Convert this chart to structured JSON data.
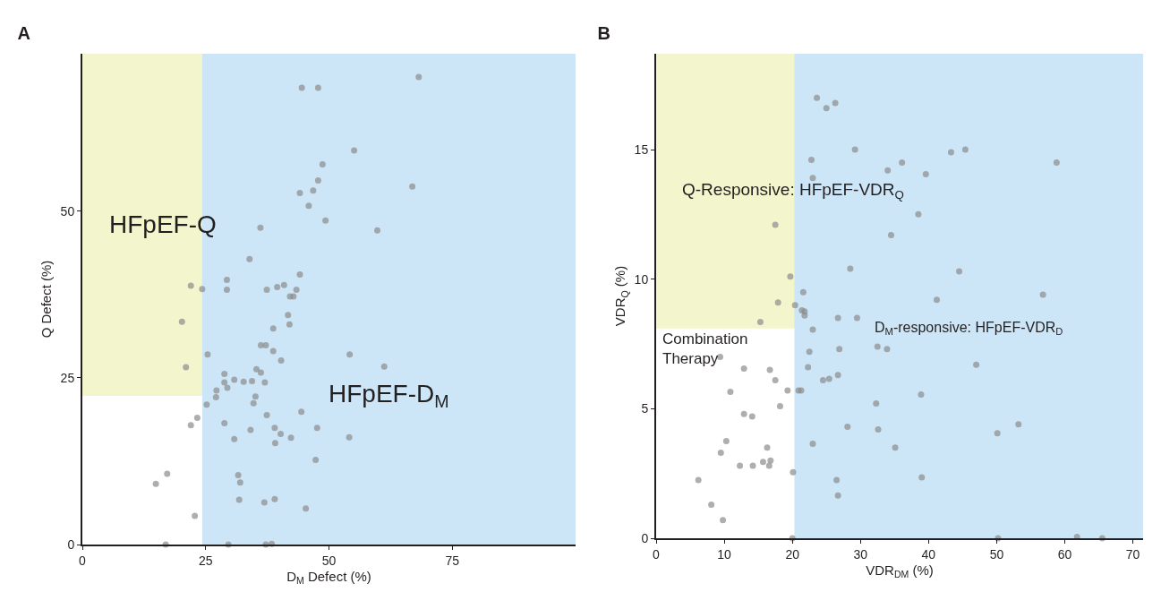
{
  "chart_data": [
    {
      "type": "scatter",
      "title": "A",
      "xlabel": "D$_{M}$ Defect (%)",
      "ylabel": "Q Defect (%)",
      "marker": "circle",
      "xlim": [
        0,
        100
      ],
      "xticks": [
        0,
        25,
        50,
        75
      ],
      "ylim": [
        0,
        73.6
      ],
      "yticks": [
        0,
        25,
        50
      ],
      "bands": [
        {
          "axis": "y",
          "from": 22.3,
          "to": 73.6,
          "label": "HFpEF-Q",
          "color": "#f3f6cc"
        },
        {
          "axis": "x",
          "from": 24.3,
          "to": 100,
          "label": "HFpEF-D$_{M}$",
          "color": "#cce6f7"
        }
      ],
      "series": [
        {
          "color": "#8c8c8c",
          "x": [
            44.5,
            44.1,
            36.1,
            33.9,
            44.1,
            22.0,
            24.3,
            29.3,
            29.3,
            37.4,
            39.5,
            40.9,
            43.4,
            42.1,
            42.8,
            41.7,
            42.0,
            20.2,
            38.7,
            36.2,
            37.2,
            38.7,
            40.3,
            25.4,
            21.0,
            35.3,
            36.2,
            28.8,
            28.8,
            30.8,
            32.7,
            34.4,
            37.0,
            29.4,
            27.2,
            27.1,
            35.1,
            25.2,
            34.7,
            44.4,
            37.4,
            23.3,
            22.0,
            28.8,
            39.0,
            40.2,
            42.3,
            34.1,
            30.8,
            39.1,
            17.2,
            14.9,
            31.6,
            32.0,
            31.8,
            36.9,
            39.0,
            22.8,
            16.9,
            29.6,
            37.2,
            38.4,
            47.8,
            68.2,
            55.1,
            48.7,
            47.8,
            46.8,
            45.9,
            49.3,
            66.9,
            59.8,
            54.2,
            61.2,
            47.6,
            54.1,
            47.3,
            45.3
          ],
          "values": [
            68.5,
            52.7,
            47.5,
            42.8,
            40.5,
            38.8,
            38.3,
            39.7,
            38.2,
            38.2,
            38.6,
            38.9,
            38.2,
            37.2,
            37.2,
            34.4,
            33.0,
            33.4,
            32.4,
            29.9,
            29.9,
            29.0,
            27.6,
            28.5,
            26.6,
            26.3,
            25.8,
            25.6,
            24.3,
            24.7,
            24.4,
            24.5,
            24.3,
            23.5,
            23.1,
            22.1,
            22.2,
            21.0,
            21.2,
            19.9,
            19.4,
            19.0,
            17.9,
            18.2,
            17.5,
            16.6,
            16.0,
            17.2,
            15.8,
            15.2,
            10.6,
            9.1,
            10.4,
            9.3,
            6.7,
            6.3,
            6.8,
            4.3,
            0,
            0,
            0,
            0.1,
            68.5,
            70.1,
            59.1,
            57.0,
            54.6,
            53.1,
            50.8,
            48.6,
            53.7,
            47.1,
            28.5,
            26.7,
            17.5,
            16.1,
            12.7,
            5.4
          ]
        }
      ]
    },
    {
      "type": "scatter",
      "title": "B",
      "xlabel": "VDR$_{DM}$ (%)",
      "ylabel": "VDR$_{Q}$ (%)",
      "marker": "circle",
      "xlim": [
        0,
        71.5
      ],
      "xticks": [
        0,
        10,
        20,
        30,
        40,
        50,
        60,
        70
      ],
      "ylim": [
        0,
        18.7
      ],
      "yticks": [
        0,
        5,
        10,
        15
      ],
      "bands": [
        {
          "axis": "y",
          "from": 8.1,
          "to": 18.7,
          "label": "Q-Responsive: HFpEF-VDR$_{Q}$",
          "color": "#f3f6cc"
        },
        {
          "axis": "x",
          "from": 20.3,
          "to": 71.5,
          "label": "D$_{M}$-responsive: HFpEF-VDR$_{D}$",
          "color": "#cce6f7"
        }
      ],
      "annotations": [
        "Combination Therapy"
      ],
      "series": [
        {
          "color": "#8c8c8c",
          "x": [
            23.6,
            25.0,
            26.3,
            29.2,
            22.8,
            23.0,
            17.5,
            28.5,
            19.7,
            21.6,
            17.9,
            20.4,
            21.4,
            21.8,
            21.8,
            26.7,
            29.5,
            15.3,
            23.0,
            22.5,
            26.9,
            9.4,
            22.3,
            12.9,
            16.7,
            26.7,
            25.4,
            24.5,
            17.5,
            19.3,
            20.9,
            21.3,
            10.9,
            18.2,
            12.9,
            14.1,
            28.1,
            23.0,
            10.3,
            16.3,
            9.5,
            16.8,
            15.7,
            16.6,
            12.3,
            14.2,
            20.1,
            6.2,
            26.5,
            26.7,
            8.1,
            9.8,
            20.0,
            34.0,
            36.1,
            39.6,
            43.3,
            45.4,
            58.8,
            38.5,
            34.5,
            44.5,
            56.8,
            41.2,
            32.5,
            33.9,
            47.0,
            38.9,
            32.3,
            32.6,
            53.2,
            50.1,
            35.1,
            39.0,
            50.2,
            61.8,
            65.5
          ],
          "values": [
            17.0,
            16.6,
            16.8,
            15.0,
            14.6,
            13.9,
            12.1,
            10.4,
            10.1,
            9.5,
            9.1,
            9.0,
            8.8,
            8.75,
            8.6,
            8.5,
            8.5,
            8.35,
            8.05,
            7.2,
            7.3,
            7.0,
            6.6,
            6.55,
            6.5,
            6.3,
            6.15,
            6.1,
            6.1,
            5.7,
            5.7,
            5.7,
            5.65,
            5.1,
            4.8,
            4.7,
            4.3,
            3.65,
            3.75,
            3.5,
            3.3,
            3.0,
            2.95,
            2.8,
            2.8,
            2.8,
            2.55,
            2.25,
            2.25,
            1.65,
            1.3,
            0.7,
            0,
            14.2,
            14.5,
            14.05,
            14.9,
            15.0,
            14.5,
            12.5,
            11.7,
            10.3,
            9.4,
            9.2,
            7.4,
            7.3,
            6.7,
            5.55,
            5.2,
            4.2,
            4.4,
            4.05,
            3.5,
            2.35,
            0,
            0.05,
            0
          ]
        }
      ]
    }
  ]
}
